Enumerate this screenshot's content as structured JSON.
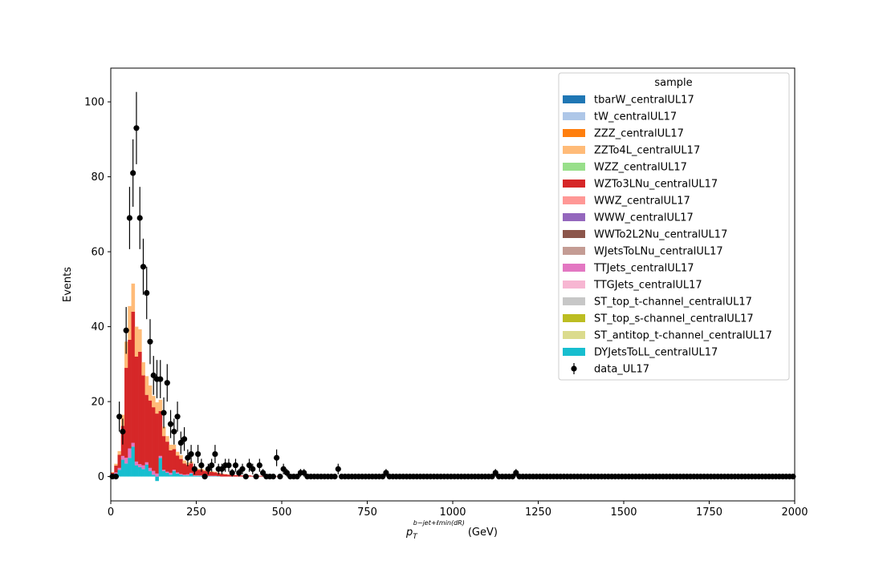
{
  "chart_data": {
    "type": "bar",
    "style": "stacked-step-histogram with data points and error bars",
    "xlabel_main": "p",
    "xlabel_sub": "T",
    "xlabel_sup": "b−jet+ℓmin(dR)",
    "xlabel_unit": "(GeV)",
    "ylabel": "Events",
    "xlim": [
      0,
      2000
    ],
    "ylim": [
      -6.5,
      109
    ],
    "grid": false,
    "bin_width": 10,
    "xticks": [
      0,
      250,
      500,
      750,
      1000,
      1250,
      1500,
      1750,
      2000
    ],
    "xtick_labels": [
      "0",
      "250",
      "500",
      "750",
      "1000",
      "1250",
      "1500",
      "1750",
      "2000"
    ],
    "yticks": [
      0,
      20,
      40,
      60,
      80,
      100
    ],
    "ytick_labels": [
      "0",
      "20",
      "40",
      "60",
      "80",
      "100"
    ],
    "legend": {
      "title": "sample",
      "placement": "top-right",
      "entries": [
        {
          "label": "tbarW_centralUL17",
          "color": "#1f77b4",
          "kind": "patch"
        },
        {
          "label": "tW_centralUL17",
          "color": "#aec7e8",
          "kind": "patch"
        },
        {
          "label": "ZZZ_centralUL17",
          "color": "#ff7f0e",
          "kind": "patch"
        },
        {
          "label": "ZZTo4L_centralUL17",
          "color": "#ffbb78",
          "kind": "patch"
        },
        {
          "label": "WZZ_centralUL17",
          "color": "#98df8a",
          "kind": "patch"
        },
        {
          "label": "WZTo3LNu_centralUL17",
          "color": "#d62728",
          "kind": "patch"
        },
        {
          "label": "WWZ_centralUL17",
          "color": "#ff9896",
          "kind": "patch"
        },
        {
          "label": "WWW_centralUL17",
          "color": "#9467bd",
          "kind": "patch"
        },
        {
          "label": "WWTo2L2Nu_centralUL17",
          "color": "#8c564b",
          "kind": "patch"
        },
        {
          "label": "WJetsToLNu_centralUL17",
          "color": "#c49c94",
          "kind": "patch"
        },
        {
          "label": "TTJets_centralUL17",
          "color": "#e377c2",
          "kind": "patch"
        },
        {
          "label": "TTGJets_centralUL17",
          "color": "#f7b6d2",
          "kind": "patch"
        },
        {
          "label": "ST_top_t-channel_centralUL17",
          "color": "#c7c7c7",
          "kind": "patch"
        },
        {
          "label": "ST_top_s-channel_centralUL17",
          "color": "#bcbd22",
          "kind": "patch"
        },
        {
          "label": "ST_antitop_t-channel_centralUL17",
          "color": "#dbdb8d",
          "kind": "patch"
        },
        {
          "label": "DYJetsToLL_centralUL17",
          "color": "#17becf",
          "kind": "patch"
        },
        {
          "label": "data_UL17",
          "color": "#000000",
          "kind": "errorbar"
        }
      ]
    },
    "stack": {
      "x_start": [
        0,
        10,
        20,
        30,
        40,
        50,
        60,
        70,
        80,
        90,
        100,
        110,
        120,
        130,
        140,
        150,
        160,
        170,
        180,
        190,
        200,
        210,
        220,
        230,
        240,
        250,
        260,
        270,
        280,
        290,
        300,
        310,
        320,
        330,
        340,
        350,
        360,
        370,
        380,
        390,
        400,
        410,
        420,
        430,
        440,
        450,
        460,
        470,
        480,
        490
      ],
      "series": [
        {
          "name": "DYJetsToLL_centralUL17",
          "color": "#17becf",
          "values": [
            0.3,
            0.8,
            1.8,
            4.5,
            3.5,
            5,
            8,
            3,
            2.5,
            2,
            3.2,
            1.5,
            0.5,
            -1.2,
            5,
            1.5,
            1,
            0.5,
            1.5,
            0.8,
            0.5,
            0.3,
            0.3,
            0.8,
            0.2,
            0.2,
            0.2,
            0.1,
            0.1,
            0.1,
            0.1,
            0.1,
            0,
            0,
            0,
            0,
            0,
            0,
            0,
            0,
            0,
            0,
            0,
            0,
            0,
            0,
            0,
            0,
            0,
            0
          ]
        },
        {
          "name": "TTJets_centralUL17",
          "color": "#e377c2",
          "values": [
            0.1,
            0.3,
            0.5,
            1,
            1.5,
            2.5,
            1,
            1,
            0.8,
            1,
            0.6,
            0.8,
            1,
            0.8,
            0.5,
            0.3,
            0.3,
            0.5,
            0.3,
            0.3,
            0.2,
            0.2,
            0.3,
            0.2,
            0.1,
            0.1,
            0.1,
            0.1,
            0.1,
            0.1,
            0.1,
            0,
            0,
            0,
            0,
            0,
            0,
            0,
            0,
            0,
            0,
            0,
            0,
            0,
            0,
            0,
            0,
            0,
            0,
            0
          ]
        },
        {
          "name": "WZTo3LNu_centralUL17",
          "color": "#d62728",
          "values": [
            0.6,
            1.8,
            3.5,
            8,
            24,
            29,
            35,
            28,
            30,
            24,
            18,
            18,
            17,
            16,
            12,
            9,
            8,
            6,
            5.5,
            4.5,
            4,
            3,
            2.5,
            2.5,
            2,
            1.5,
            1.5,
            1.3,
            1.1,
            1,
            0.9,
            0.8,
            0.7,
            0.6,
            0.5,
            0.5,
            0.4,
            0.4,
            0.3,
            0.3,
            0.3,
            0.2,
            0.2,
            0.2,
            0.2,
            0.1,
            0.1,
            0.1,
            0.1,
            0.1
          ]
        },
        {
          "name": "ZZTo4L_centralUL17",
          "color": "#ffbb78",
          "values": [
            0.2,
            0.5,
            1,
            3,
            7,
            9,
            7.5,
            8,
            6,
            3.5,
            5,
            4,
            3,
            3,
            3,
            2.5,
            1.5,
            1.5,
            1.2,
            1,
            1,
            0.8,
            0.6,
            0.5,
            0.4,
            0.3,
            0.3,
            0.3,
            0.2,
            0.2,
            0.2,
            0.1,
            0.1,
            0.1,
            0.1,
            0.1,
            0,
            0,
            0,
            0,
            0,
            0,
            0,
            0,
            0,
            0,
            0,
            0,
            0,
            0
          ]
        }
      ]
    },
    "data_points": {
      "name": "data_UL17",
      "x": [
        25,
        35,
        45,
        55,
        65,
        75,
        85,
        95,
        105,
        115,
        125,
        135,
        145,
        155,
        165,
        175,
        185,
        195,
        205,
        215,
        225,
        235,
        245,
        255,
        265,
        275,
        285,
        295,
        305,
        315,
        325,
        335,
        345,
        355,
        365,
        375,
        385,
        395,
        405,
        415,
        425,
        435,
        445,
        485,
        505,
        515,
        555,
        565,
        665,
        805,
        1125,
        1185
      ],
      "y": [
        16,
        12,
        39,
        69,
        81,
        93,
        69,
        56,
        49,
        36,
        27,
        26,
        26,
        17,
        25,
        14,
        12,
        16,
        9,
        10,
        5,
        6,
        2,
        6,
        3,
        0,
        2,
        3,
        6,
        2,
        2,
        3,
        3,
        1,
        3,
        1,
        2,
        0,
        3,
        2,
        0,
        3,
        1,
        5,
        2,
        1,
        1,
        1,
        2,
        1,
        1,
        1
      ]
    }
  }
}
